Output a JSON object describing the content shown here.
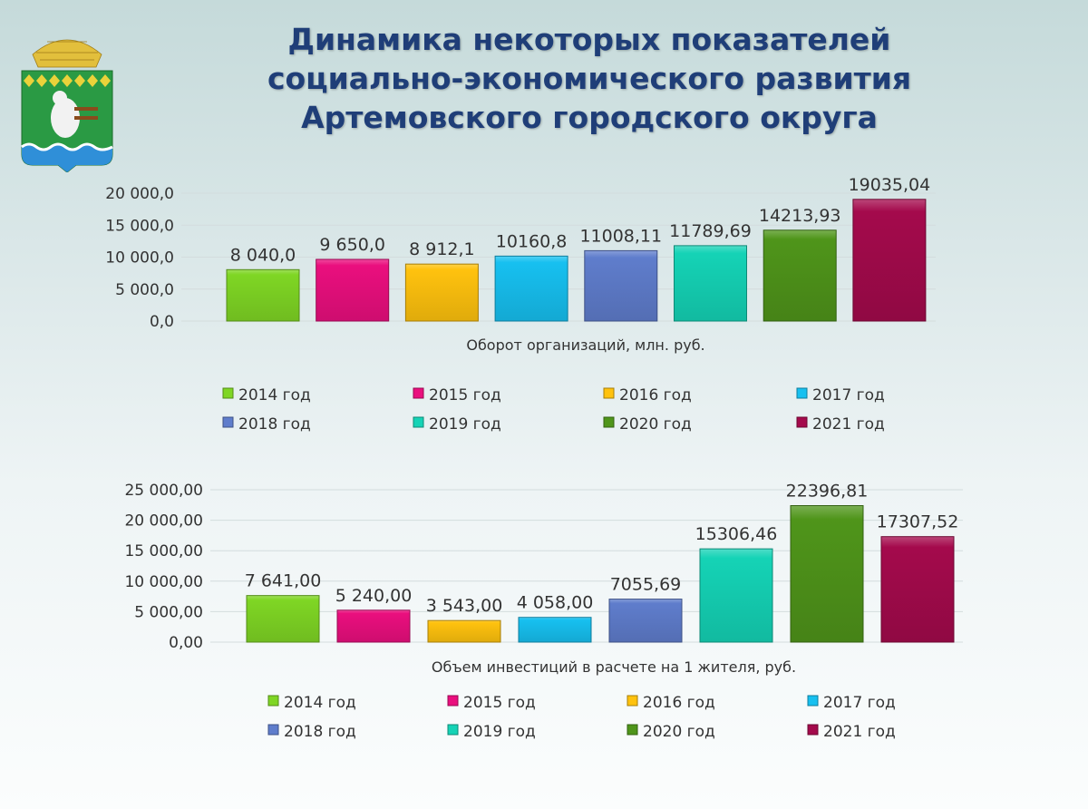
{
  "title": {
    "line1": "Динамика некоторых показателей",
    "line2": "социально-экономического развития",
    "line3": "Артемовского городского округа"
  },
  "emblem": {
    "icon": "artemovsky-coat-of-arms"
  },
  "chart_data": [
    {
      "type": "bar",
      "title": "Оборот организаций, млн. руб.",
      "categories": [
        "2014 год",
        "2015 год",
        "2016 год",
        "2017 год",
        "2018 год",
        "2019 год",
        "2020 год",
        "2021 год"
      ],
      "values": [
        8040.0,
        9650.0,
        8912.1,
        10160.8,
        11008.11,
        11789.69,
        14213.93,
        19035.04
      ],
      "data_labels": [
        "8 040,0",
        "9 650,0",
        "8 912,1",
        "10160,8",
        "11008,11",
        "11789,69",
        "14213,93",
        "19035,04"
      ],
      "ylim": [
        0,
        20000
      ],
      "yticks": [
        "0,0",
        "5 000,0",
        "10 000,0",
        "15 000,0",
        "20 000,0"
      ],
      "grid": true,
      "legend": "bottom",
      "colors": [
        "#7fd624",
        "#ea0f7e",
        "#ffc20e",
        "#17c0f0",
        "#5f7dcc",
        "#15d3b6",
        "#4f951a",
        "#a40a4c"
      ]
    },
    {
      "type": "bar",
      "title": "Объем инвестиций в расчете  на 1 жителя, руб.",
      "categories": [
        "2014 год",
        "2015 год",
        "2016 год",
        "2017 год",
        "2018 год",
        "2019 год",
        "2020 год",
        "2021 год"
      ],
      "values": [
        7641.0,
        5240.0,
        3543.0,
        4058.0,
        7055.69,
        15306.46,
        22396.81,
        17307.52
      ],
      "data_labels": [
        "7 641,00",
        "5 240,00",
        "3 543,00",
        "4 058,00",
        "7055,69",
        "15306,46",
        "22396,81",
        "17307,52"
      ],
      "ylim": [
        0,
        25000
      ],
      "yticks": [
        "0,00",
        "5 000,00",
        "10 000,00",
        "15 000,00",
        "20 000,00",
        "25 000,00"
      ],
      "grid": true,
      "legend": "bottom",
      "colors": [
        "#7fd624",
        "#ea0f7e",
        "#ffc20e",
        "#17c0f0",
        "#5f7dcc",
        "#15d3b6",
        "#4f951a",
        "#a40a4c"
      ]
    }
  ]
}
